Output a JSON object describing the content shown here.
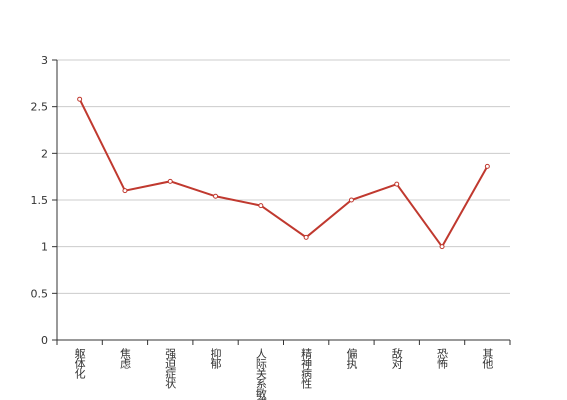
{
  "chart_data": {
    "type": "line",
    "categories": [
      "躯体化",
      "焦虑",
      "强迫症状",
      "抑郁",
      "人际关系敏感",
      "精神病性",
      "偏执",
      "敌对",
      "恐怖",
      "其他"
    ],
    "series": [
      {
        "color": "#c0392f",
        "values": [
          2.58,
          1.6,
          1.7,
          1.54,
          1.44,
          1.1,
          1.5,
          1.67,
          1.0,
          1.86
        ]
      }
    ],
    "ylim": [
      0,
      3
    ],
    "yticks": [
      0,
      0.5,
      1,
      1.5,
      2,
      2.5,
      3
    ],
    "grid": true
  }
}
